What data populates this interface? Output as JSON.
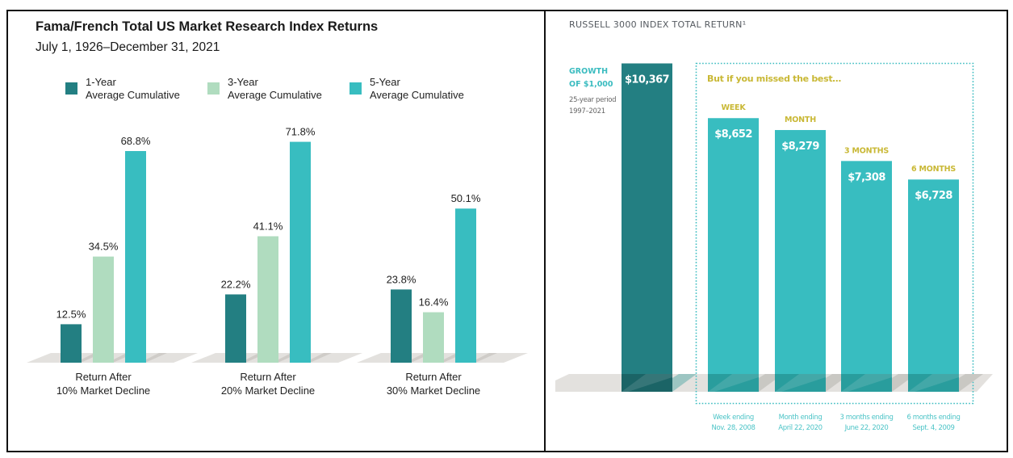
{
  "chart_data": [
    {
      "type": "bar",
      "title": "Fama/French Total US Market Research Index Returns",
      "subtitle": "July 1, 1926–December 31, 2021",
      "categories": [
        "Return After\n10% Market Decline",
        "Return After\n20% Market Decline",
        "Return After\n30% Market Decline"
      ],
      "category_lines": [
        [
          "Return After",
          "10% Market Decline"
        ],
        [
          "Return After",
          "20% Market Decline"
        ],
        [
          "Return After",
          "30% Market Decline"
        ]
      ],
      "series": [
        {
          "name": "1-Year Average Cumulative",
          "legend_lines": [
            "1-Year",
            "Average Cumulative"
          ],
          "color": "#237f82",
          "values": [
            12.5,
            22.2,
            23.8
          ],
          "labels": [
            "12.5%",
            "22.2%",
            "23.8%"
          ]
        },
        {
          "name": "3-Year Average Cumulative",
          "legend_lines": [
            "3-Year",
            "Average Cumulative"
          ],
          "color": "#b0dcbf",
          "values": [
            34.5,
            41.1,
            16.4
          ],
          "labels": [
            "34.5%",
            "41.1%",
            "16.4%"
          ]
        },
        {
          "name": "5-Year Average Cumulative",
          "legend_lines": [
            "5-Year",
            "Average Cumulative"
          ],
          "color": "#38bdc0",
          "values": [
            68.8,
            71.8,
            50.1
          ],
          "labels": [
            "68.8%",
            "71.8%",
            "50.1%"
          ]
        }
      ],
      "xlabel": "",
      "ylabel": "",
      "ylim": [
        0,
        75
      ],
      "grid": false,
      "legend_position": "top",
      "floor_color": "#e3e1de"
    },
    {
      "type": "bar",
      "title": "RUSSELL 3000 INDEX TOTAL RETURN¹",
      "growth_label_lines": [
        "GROWTH",
        "OF $1,000"
      ],
      "growth_period_lines": [
        "25-year period",
        "1997–2021"
      ],
      "missed_title": "But if you missed the best…",
      "categories": [
        "Growth of $1,000",
        "WEEK",
        "MONTH",
        "3 MONTHS",
        "6 MONTHS"
      ],
      "values": [
        10367,
        8652,
        8279,
        7308,
        6728
      ],
      "labels": [
        "$10,367",
        "$8,652",
        "$8,279",
        "$7,308",
        "$6,728"
      ],
      "bar_colors": [
        "#237f82",
        "#38bdc0",
        "#38bdc0",
        "#38bdc0",
        "#38bdc0"
      ],
      "category_label_color": "#c9b835",
      "notes": [
        null,
        [
          "Week ending",
          "Nov. 28, 2008"
        ],
        [
          "Month ending",
          "April 22, 2020"
        ],
        [
          "3 months ending",
          "June 22, 2020"
        ],
        [
          "6 months ending",
          "Sept. 4, 2009"
        ]
      ],
      "note_color": "#4dc4c7",
      "ylim": [
        0,
        12000
      ],
      "grid": false,
      "floor_color": "#e3e1de",
      "highlight_box_color": "#3bbcc0"
    }
  ]
}
